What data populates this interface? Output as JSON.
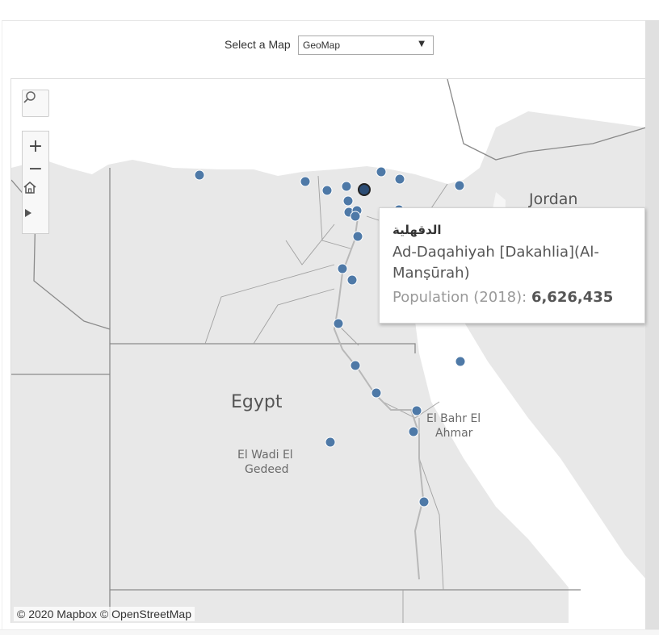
{
  "selector": {
    "label": "Select a Map",
    "value": "GeoMap"
  },
  "map": {
    "labels": {
      "country_egypt": "Egypt",
      "country_jordan": "Jordan",
      "region_red_sea_1": "El Bahr El",
      "region_red_sea_2": "Ahmar",
      "region_new_valley_1": "El Wadi El",
      "region_new_valley_2": "Gedeed"
    },
    "attribution": "© 2020 Mapbox  © OpenStreetMap",
    "marker_color": "#4e79a7"
  },
  "tooltip": {
    "arabic_name": "الدقهلية",
    "name": "Ad-Daqahiyah [Dakahlia](Al-Manṣūrah)",
    "population_label": "Population (2018): ",
    "population_value": "6,626,435"
  }
}
